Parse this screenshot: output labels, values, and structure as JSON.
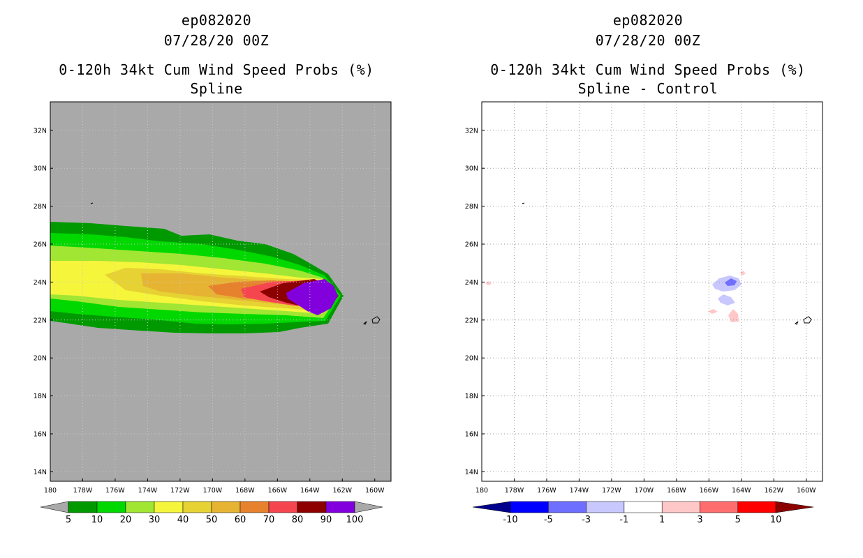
{
  "panels": [
    {
      "title_lines": [
        "ep082020",
        "07/28/20 00Z",
        "0-120h 34kt Cum Wind Speed Probs (%)",
        "Spline"
      ],
      "background": "#a9a9a9",
      "colorbar": {
        "labels": [
          "5",
          "10",
          "20",
          "30",
          "40",
          "50",
          "60",
          "70",
          "80",
          "90",
          "100"
        ],
        "colors": [
          "#009a00",
          "#00d800",
          "#a0e632",
          "#f5f53c",
          "#e6d232",
          "#e6b432",
          "#e6822d",
          "#f54650",
          "#8c0000",
          "#8200dc"
        ],
        "low_end": "#a9a9a9",
        "high_end": "#a9a9a9"
      }
    },
    {
      "title_lines": [
        "ep082020",
        "07/28/20 00Z",
        "0-120h 34kt Cum Wind Speed Probs (%)",
        "Spline - Control"
      ],
      "background": "#ffffff",
      "colorbar": {
        "labels": [
          "-10",
          "-5",
          "-3",
          "-1",
          "1",
          "3",
          "5",
          "10"
        ],
        "colors": [
          "#0000ff",
          "#6e6eff",
          "#c8c8ff",
          "#ffffff",
          "#ffc8c8",
          "#ff6e6e",
          "#ff0000"
        ],
        "low_end": "#00008c",
        "high_end": "#8c0000"
      }
    }
  ],
  "chart_data": [
    {
      "type": "contour_map",
      "title": "ep082020 07/28/20 00Z 0-120h 34kt Cum Wind Speed Probs (%) Spline",
      "xlim": [
        180,
        159
      ],
      "ylim": [
        13.5,
        33.5
      ],
      "x_ticks": [
        "180",
        "178W",
        "176W",
        "174W",
        "172W",
        "170W",
        "168W",
        "166W",
        "164W",
        "162W",
        "160W"
      ],
      "y_ticks": [
        "14N",
        "16N",
        "18N",
        "20N",
        "22N",
        "24N",
        "26N",
        "28N",
        "30N",
        "32N"
      ],
      "levels": [
        5,
        10,
        20,
        30,
        40,
        50,
        60,
        70,
        80,
        90,
        100
      ],
      "storm_track_center_lat": 23.3,
      "max_prob_center_lon_w": 162.8,
      "max_prob_region": ">90% near 163W-162W, 22.7N-24.0N"
    },
    {
      "type": "contour_map",
      "title": "ep082020 07/28/20 00Z 0-120h 34kt Cum Wind Speed Probs (%) Spline - Control",
      "xlim": [
        180,
        159
      ],
      "ylim": [
        13.5,
        33.5
      ],
      "x_ticks": [
        "180",
        "178W",
        "176W",
        "174W",
        "172W",
        "170W",
        "168W",
        "166W",
        "164W",
        "162W",
        "160W"
      ],
      "y_ticks": [
        "14N",
        "16N",
        "18N",
        "20N",
        "22N",
        "24N",
        "26N",
        "28N",
        "30N",
        "32N"
      ],
      "levels": [
        -10,
        -5,
        -3,
        -1,
        1,
        3,
        5,
        10
      ],
      "features": "small negative differences (-1 to -5) near 164W 24N; small positive differences (1 to 3) near 164W 22N and 179W 24N"
    }
  ]
}
